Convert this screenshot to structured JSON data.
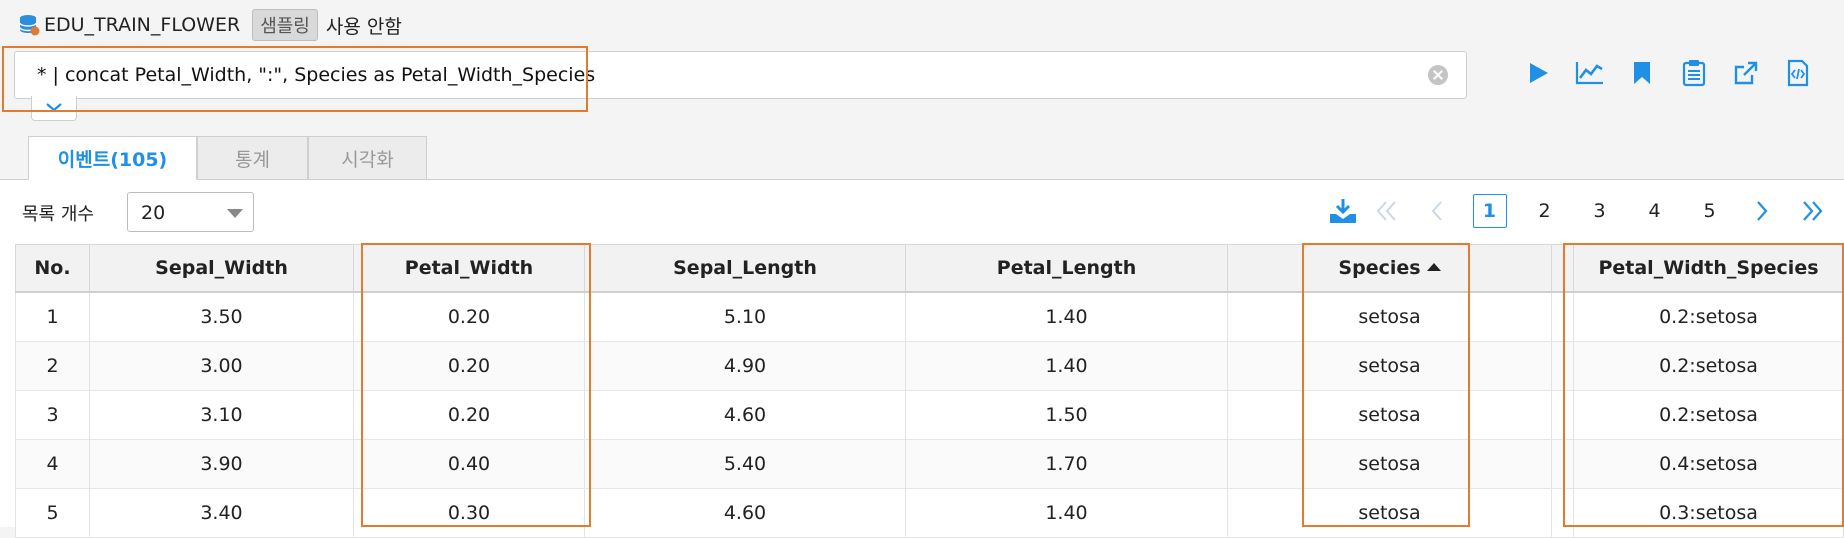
{
  "header": {
    "dataset_icon": "database-icon",
    "dataset_name": "EDU_TRAIN_FLOWER",
    "sampling_label": "샘플링",
    "sampling_status": "사용 안함"
  },
  "query": {
    "text": "* | concat Petal_Width, \":\", Species as Petal_Width_Species",
    "clear_icon": "clear-circle-icon",
    "expand_icon": "chevron-down-icon"
  },
  "toolbar": {
    "accent_color": "#1f90e6",
    "icons": [
      "play-icon",
      "chart-icon",
      "bookmark-icon",
      "clipboard-icon",
      "export-icon",
      "code-file-icon"
    ]
  },
  "tabs": [
    {
      "label": "이벤트(105)",
      "active": true
    },
    {
      "label": "통계",
      "active": false
    },
    {
      "label": "시각화",
      "active": false
    }
  ],
  "list": {
    "rows_label": "목록 개수",
    "rows_value": "20"
  },
  "pagination": {
    "download_icon": "download-icon",
    "pages": [
      "1",
      "2",
      "3",
      "4",
      "5"
    ],
    "current_page": "1"
  },
  "table": {
    "columns": [
      "No.",
      "Sepal_Width",
      "Petal_Width",
      "Sepal_Length",
      "Petal_Length",
      "Species",
      "",
      "Petal_Width_Species"
    ],
    "sorted_column": "Species",
    "sort_direction": "ascending",
    "rows": [
      [
        "1",
        "3.50",
        "0.20",
        "5.10",
        "1.40",
        "setosa",
        "",
        "0.2:setosa"
      ],
      [
        "2",
        "3.00",
        "0.20",
        "4.90",
        "1.40",
        "setosa",
        "",
        "0.2:setosa"
      ],
      [
        "3",
        "3.10",
        "0.20",
        "4.60",
        "1.50",
        "setosa",
        "",
        "0.2:setosa"
      ],
      [
        "4",
        "3.90",
        "0.40",
        "5.40",
        "1.70",
        "setosa",
        "",
        "0.4:setosa"
      ],
      [
        "5",
        "3.40",
        "0.30",
        "4.60",
        "1.40",
        "setosa",
        "",
        "0.3:setosa"
      ]
    ]
  },
  "highlight_color": "#e07b30"
}
